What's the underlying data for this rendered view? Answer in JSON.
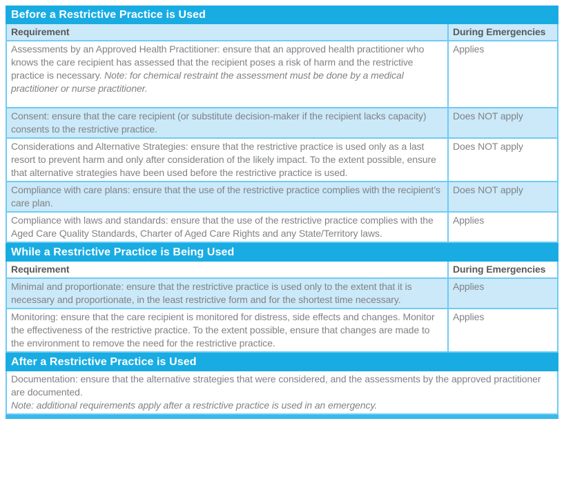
{
  "colors": {
    "section_bar_blue": "#18ACE3",
    "shaded_row_blue": "#CBE9F9",
    "cell_border_cyan": "#6DCBF3",
    "bottom_bar_blue": "#3BB9EA",
    "column_header_text": "#58595B",
    "body_text_gray": "#808285",
    "section_title_text": "#FFFFFF"
  },
  "column_headers": {
    "requirement": "Requirement",
    "during_emergencies": "During Emergencies"
  },
  "sections": [
    {
      "title": "Before a Restrictive Practice is Used",
      "rows": [
        {
          "text": "Assessments by an Approved Health Practitioner: ensure that an approved health practitioner who knows the care recipient has assessed that the recipient poses a risk of harm and the restrictive practice is necessary. ",
          "note": "Note: for chemical restraint the assessment must be done by a medical practitioner or nurse practitioner.",
          "emergency": "Applies"
        },
        {
          "text": "Consent: ensure that the care recipient (or substitute decision-maker if the recipient lacks capacity) consents to the restrictive practice.",
          "emergency": "Does NOT apply"
        },
        {
          "text": "Considerations and Alternative Strategies: ensure that the restrictive practice is used only as a last resort to prevent harm and only after consideration of the likely impact. To the extent possible, ensure that alternative strategies have been used before the restrictive practice is used.",
          "emergency": "Does NOT apply"
        },
        {
          "text": "Compliance with care plans: ensure that the use of the restrictive practice complies with the recipient’s care plan.",
          "emergency": "Does NOT apply"
        },
        {
          "text": "Compliance with laws and standards: ensure that the use of the restrictive practice complies with the Aged Care Quality Standards, Charter of Aged Care Rights and any State/Territory laws.",
          "emergency": "Applies"
        }
      ]
    },
    {
      "title": "While a Restrictive Practice is Being Used",
      "rows": [
        {
          "text": "Minimal and proportionate: ensure that the restrictive practice is used only to the extent that it is necessary and proportionate, in the least restrictive form and for the shortest time necessary.",
          "emergency": "Applies"
        },
        {
          "text": "Monitoring: ensure that the care recipient is monitored for distress, side effects and changes. Monitor the effectiveness of the restrictive practice. To the extent possible, ensure that changes are made to the environment to remove the need for the restrictive practice.",
          "emergency": "Applies"
        }
      ]
    },
    {
      "title": "After a Restrictive Practice is Used",
      "rows": [
        {
          "text": "Documentation: ensure that the alternative strategies that were considered, and the assessments by the approved practitioner are documented.",
          "note": "Note: additional requirements apply after a restrictive practice is used in an emergency."
        }
      ]
    }
  ]
}
